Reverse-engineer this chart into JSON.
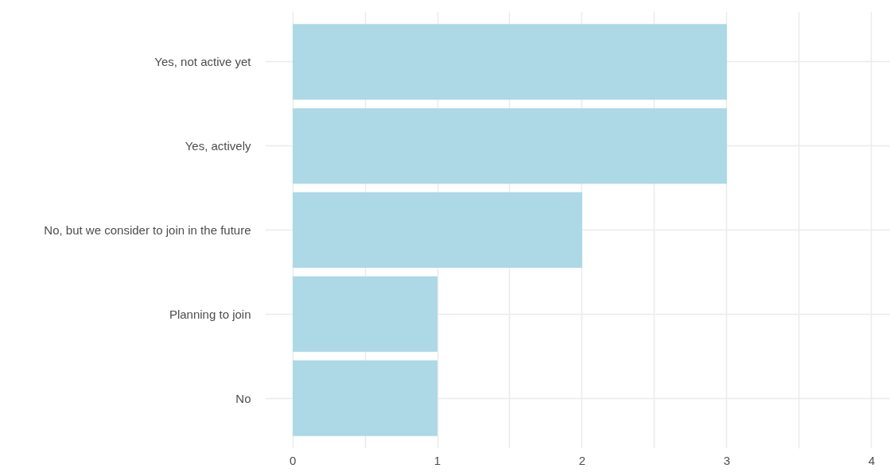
{
  "chart_data": {
    "type": "bar",
    "orientation": "horizontal",
    "categories": [
      "Yes, not active yet",
      "Yes, actively",
      "No, but we consider to join in the future",
      "Planning to join",
      "No"
    ],
    "values": [
      3,
      3,
      2,
      1,
      1
    ],
    "color": "#add8e6",
    "xlim": [
      -0.19,
      4.13
    ],
    "xticks": [
      0,
      {
        "value": 0.5,
        "label": null
      },
      1,
      {
        "value": 1.5,
        "label": null
      },
      2,
      {
        "value": 2.5,
        "label": null
      },
      3,
      {
        "value": 3.5,
        "label": null
      },
      4
    ],
    "grid": true
  }
}
